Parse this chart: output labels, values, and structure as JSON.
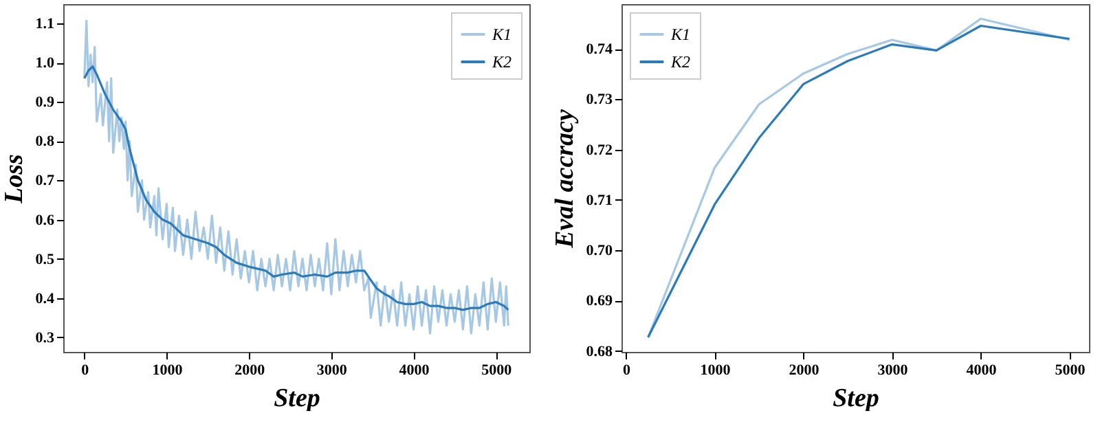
{
  "chart_data": [
    {
      "type": "line",
      "xlabel": "Step",
      "ylabel": "Loss",
      "xlim": [
        -257,
        5407
      ],
      "ylim": [
        0.263,
        1.149
      ],
      "xticks": [
        0,
        1000,
        2000,
        3000,
        4000,
        5000
      ],
      "yticks": [
        0.3,
        0.4,
        0.5,
        0.6,
        0.7,
        0.8,
        0.9,
        {
          "value": 1.0,
          "label": "1.0"
        },
        1.1
      ],
      "legend": "top right",
      "grid": false,
      "series": [
        {
          "name": "K1",
          "color": "#a6c8e4",
          "x": [
            0,
            25,
            50,
            75,
            100,
            125,
            150,
            200,
            225,
            275,
            300,
            325,
            350,
            400,
            425,
            450,
            480,
            500,
            525,
            550,
            575,
            625,
            650,
            700,
            725,
            775,
            800,
            850,
            875,
            900,
            950,
            1000,
            1025,
            1075,
            1100,
            1150,
            1200,
            1250,
            1300,
            1350,
            1400,
            1450,
            1500,
            1550,
            1600,
            1650,
            1700,
            1750,
            1800,
            1850,
            1900,
            1950,
            2000,
            2050,
            2100,
            2150,
            2200,
            2250,
            2300,
            2350,
            2400,
            2450,
            2500,
            2550,
            2600,
            2650,
            2700,
            2750,
            2800,
            2850,
            2900,
            2950,
            3000,
            3050,
            3100,
            3150,
            3200,
            3250,
            3300,
            3350,
            3400,
            3450,
            3480,
            3550,
            3600,
            3650,
            3700,
            3750,
            3800,
            3850,
            3900,
            3950,
            4000,
            4050,
            4100,
            4150,
            4200,
            4250,
            4300,
            4350,
            4400,
            4450,
            4500,
            4550,
            4600,
            4650,
            4700,
            4750,
            4800,
            4850,
            4900,
            4950,
            5000,
            5050,
            5100,
            5125,
            5150
          ],
          "values": [
            0.96,
            1.107,
            0.94,
            1.02,
            0.95,
            1.04,
            0.85,
            0.92,
            0.84,
            0.95,
            0.8,
            0.96,
            0.77,
            0.88,
            0.8,
            0.86,
            0.78,
            0.85,
            0.7,
            0.8,
            0.66,
            0.74,
            0.62,
            0.7,
            0.6,
            0.67,
            0.58,
            0.66,
            0.56,
            0.68,
            0.55,
            0.64,
            0.53,
            0.63,
            0.52,
            0.61,
            0.51,
            0.6,
            0.5,
            0.62,
            0.52,
            0.58,
            0.5,
            0.61,
            0.49,
            0.58,
            0.47,
            0.57,
            0.46,
            0.55,
            0.45,
            0.52,
            0.44,
            0.52,
            0.42,
            0.5,
            0.43,
            0.5,
            0.42,
            0.51,
            0.43,
            0.5,
            0.42,
            0.52,
            0.43,
            0.5,
            0.42,
            0.51,
            0.43,
            0.5,
            0.42,
            0.54,
            0.41,
            0.55,
            0.42,
            0.52,
            0.43,
            0.51,
            0.44,
            0.52,
            0.42,
            0.45,
            0.35,
            0.44,
            0.33,
            0.43,
            0.34,
            0.42,
            0.33,
            0.44,
            0.33,
            0.41,
            0.32,
            0.43,
            0.33,
            0.42,
            0.31,
            0.43,
            0.34,
            0.42,
            0.33,
            0.41,
            0.34,
            0.42,
            0.32,
            0.43,
            0.31,
            0.41,
            0.33,
            0.44,
            0.32,
            0.45,
            0.34,
            0.44,
            0.33,
            0.43,
            0.33
          ]
        },
        {
          "name": "K2",
          "color": "#2b7bba",
          "x": [
            0,
            50,
            100,
            150,
            250,
            350,
            450,
            500,
            550,
            650,
            750,
            850,
            950,
            1050,
            1200,
            1350,
            1500,
            1600,
            1700,
            1850,
            2000,
            2100,
            2200,
            2300,
            2400,
            2550,
            2650,
            2800,
            2950,
            3050,
            3200,
            3300,
            3400,
            3450,
            3550,
            3650,
            3700,
            3800,
            3900,
            4000,
            4100,
            4200,
            4300,
            4400,
            4500,
            4600,
            4700,
            4800,
            4900,
            5000,
            5100,
            5150
          ],
          "values": [
            0.96,
            0.98,
            0.99,
            0.97,
            0.92,
            0.88,
            0.85,
            0.83,
            0.78,
            0.7,
            0.65,
            0.62,
            0.6,
            0.59,
            0.56,
            0.55,
            0.54,
            0.53,
            0.51,
            0.49,
            0.48,
            0.475,
            0.47,
            0.455,
            0.46,
            0.465,
            0.455,
            0.46,
            0.455,
            0.465,
            0.465,
            0.47,
            0.47,
            0.455,
            0.425,
            0.41,
            0.405,
            0.39,
            0.385,
            0.385,
            0.39,
            0.38,
            0.38,
            0.375,
            0.375,
            0.37,
            0.375,
            0.375,
            0.385,
            0.39,
            0.38,
            0.37
          ]
        }
      ]
    },
    {
      "type": "line",
      "xlabel": "Step",
      "ylabel": "Eval accracy",
      "xlim": [
        -50,
        5220
      ],
      "ylim": [
        0.6798,
        0.7489
      ],
      "xticks": [
        0,
        1000,
        2000,
        3000,
        4000,
        5000
      ],
      "yticks": [
        0.68,
        0.69,
        {
          "value": 0.7,
          "label": "0.70"
        },
        0.71,
        0.72,
        0.73,
        0.74
      ],
      "legend": "top left",
      "grid": false,
      "series": [
        {
          "name": "K1",
          "color": "#a6c8e4",
          "x": [
            250,
            1000,
            1500,
            2000,
            2500,
            3000,
            3500,
            4000,
            5000
          ],
          "values": [
            0.6827,
            0.7164,
            0.729,
            0.7351,
            0.739,
            0.7418,
            0.7397,
            0.746,
            0.7418
          ]
        },
        {
          "name": "K2",
          "color": "#2b7bba",
          "x": [
            250,
            1000,
            1500,
            2000,
            2500,
            3000,
            3500,
            4000,
            5000
          ],
          "values": [
            0.6827,
            0.7091,
            0.7223,
            0.733,
            0.7376,
            0.7409,
            0.7397,
            0.7446,
            0.742
          ]
        }
      ]
    }
  ]
}
